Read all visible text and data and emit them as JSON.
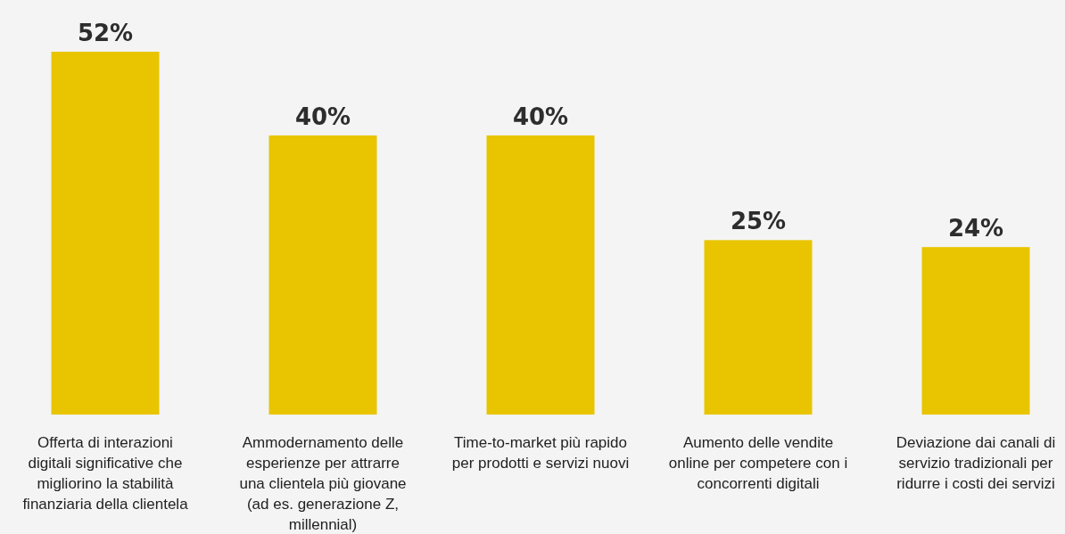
{
  "chart_data": {
    "type": "bar",
    "categories": [
      "Offerta di interazioni digitali significative che migliorino la stabilità finanziaria della clientela",
      "Ammodernamento delle esperienze per attrarre una clientela più giovane (ad es. generazione Z, millennial)",
      "Time-to-market più rapido per prodotti e servizi nuovi",
      "Aumento delle vendite online per competere con i concorrenti digitali",
      "Deviazione dai canali di servizio tradizionali per ridurre i costi dei servizi"
    ],
    "values": [
      52,
      40,
      40,
      25,
      24
    ],
    "value_labels": [
      "52%",
      "40%",
      "40%",
      "25%",
      "24%"
    ],
    "color": "#e8c500"
  }
}
